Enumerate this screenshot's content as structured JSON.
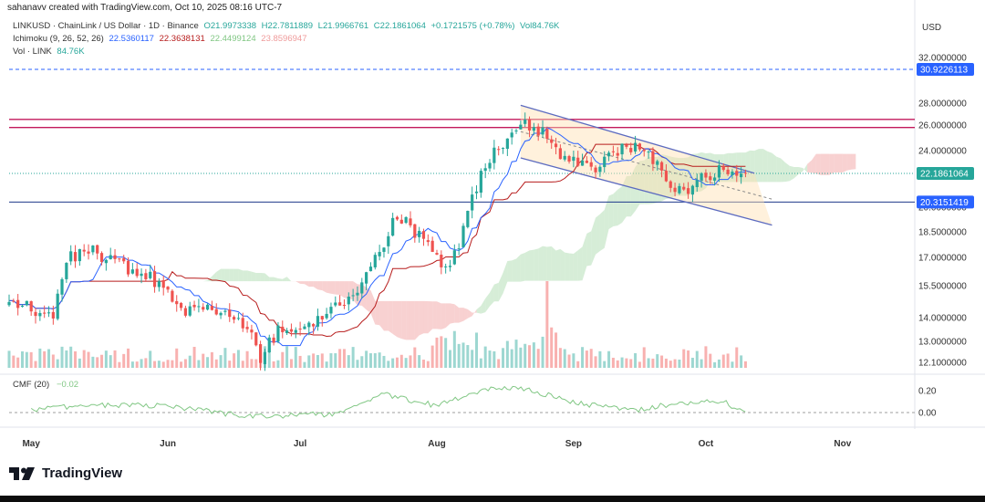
{
  "header": {
    "credit": "sahanavv created with TradingView.com, Oct 10, 2025 08:16 UTC-7"
  },
  "legend": {
    "symbol": "LINKUSD · ChainLink / US Dollar · 1D · Binance",
    "open": "O21.9973338",
    "high": "H22.7811889",
    "low": "L21.9966761",
    "close": "C22.1861064",
    "change": "+0.1721575 (+0.78%)",
    "volume": "Vol84.76K",
    "ichimoku_label": "Ichimoku (9, 26, 52, 26)",
    "ichimoku_values": [
      "22.5360117",
      "22.3638131",
      "22.4499124",
      "23.8596947"
    ],
    "vol_label": "Vol · LINK",
    "vol_value": "84.76K",
    "cmf_label": "CMF (20)",
    "cmf_value": "−0.02"
  },
  "axis": {
    "currency": "USD",
    "price_ticks": [
      "32.0000000",
      "28.0000000",
      "26.0000000",
      "24.0000000",
      "20.0000000",
      "18.5000000",
      "17.0000000",
      "15.5000000",
      "14.0000000",
      "13.0000000",
      "12.1000000"
    ],
    "price_tags": [
      {
        "text": "30.9226113",
        "value": 30.9226113,
        "color": "#2962ff"
      },
      {
        "text": "22.1861064",
        "value": 22.1861064,
        "color": "#26a69a"
      },
      {
        "text": "20.3151419",
        "value": 20.3151419,
        "color": "#2962ff"
      }
    ],
    "cmf_ticks": [
      "0.20",
      "0.00"
    ],
    "months": [
      "May",
      "Jun",
      "Jul",
      "Aug",
      "Sep",
      "Oct",
      "Nov"
    ]
  },
  "brand": {
    "name": "TradingView"
  },
  "colors": {
    "up": "#26a69a",
    "down": "#ef5350",
    "tenkan": "#2962ff",
    "kijun": "#b71c1c",
    "cloud_bull": "#a5d6a7",
    "cloud_bear": "#ef9a9a",
    "channel": "#5c6bc0",
    "resistance": "#c2185b",
    "support": "#1e3a8a",
    "cmf": "#81c784"
  },
  "chart_data": {
    "type": "candlestick",
    "symbol": "LINKUSD",
    "interval": "1D",
    "y_axis_scale": "log",
    "ylim": [
      12.1,
      33.2
    ],
    "resistance_levels": [
      26.5,
      25.8
    ],
    "support_level": 20.3151419,
    "upper_target": 30.9226113,
    "channel": {
      "upper": [
        {
          "date": "2025-08-20",
          "price": 27.8
        },
        {
          "date": "2025-10-12",
          "price": 22.2
        }
      ],
      "lower": [
        {
          "date": "2025-08-20",
          "price": 23.4
        },
        {
          "date": "2025-10-16",
          "price": 18.9
        }
      ]
    },
    "closes": [
      {
        "date": "2025-04-26",
        "close": 14.6
      },
      {
        "date": "2025-05-01",
        "close": 14.4
      },
      {
        "date": "2025-05-06",
        "close": 14.2
      },
      {
        "date": "2025-05-09",
        "close": 16.8
      },
      {
        "date": "2025-05-13",
        "close": 17.5
      },
      {
        "date": "2025-05-18",
        "close": 17.0
      },
      {
        "date": "2025-05-23",
        "close": 16.3
      },
      {
        "date": "2025-05-28",
        "close": 15.9
      },
      {
        "date": "2025-06-01",
        "close": 15.2
      },
      {
        "date": "2025-06-05",
        "close": 14.3
      },
      {
        "date": "2025-06-10",
        "close": 14.7
      },
      {
        "date": "2025-06-15",
        "close": 13.9
      },
      {
        "date": "2025-06-19",
        "close": 13.8
      },
      {
        "date": "2025-06-22",
        "close": 12.3
      },
      {
        "date": "2025-06-26",
        "close": 13.5
      },
      {
        "date": "2025-07-01",
        "close": 13.4
      },
      {
        "date": "2025-07-06",
        "close": 13.9
      },
      {
        "date": "2025-07-10",
        "close": 14.6
      },
      {
        "date": "2025-07-14",
        "close": 15.4
      },
      {
        "date": "2025-07-19",
        "close": 17.2
      },
      {
        "date": "2025-07-23",
        "close": 19.6
      },
      {
        "date": "2025-07-27",
        "close": 18.5
      },
      {
        "date": "2025-07-31",
        "close": 17.6
      },
      {
        "date": "2025-08-03",
        "close": 16.2
      },
      {
        "date": "2025-08-06",
        "close": 17.7
      },
      {
        "date": "2025-08-09",
        "close": 20.6
      },
      {
        "date": "2025-08-13",
        "close": 23.4
      },
      {
        "date": "2025-08-17",
        "close": 25.0
      },
      {
        "date": "2025-08-21",
        "close": 26.4
      },
      {
        "date": "2025-08-25",
        "close": 25.3
      },
      {
        "date": "2025-08-29",
        "close": 23.6
      },
      {
        "date": "2025-09-02",
        "close": 22.8
      },
      {
        "date": "2025-09-06",
        "close": 22.7
      },
      {
        "date": "2025-09-10",
        "close": 23.8
      },
      {
        "date": "2025-09-14",
        "close": 24.2
      },
      {
        "date": "2025-09-18",
        "close": 23.6
      },
      {
        "date": "2025-09-22",
        "close": 21.9
      },
      {
        "date": "2025-09-26",
        "close": 20.9
      },
      {
        "date": "2025-09-30",
        "close": 21.8
      },
      {
        "date": "2025-10-04",
        "close": 22.6
      },
      {
        "date": "2025-10-08",
        "close": 22.4
      },
      {
        "date": "2025-10-10",
        "close": 22.19
      }
    ],
    "cmf": {
      "name": "CMF (20)",
      "values": [
        {
          "date": "2025-05-01",
          "value": 0.02
        },
        {
          "date": "2025-05-15",
          "value": 0.07
        },
        {
          "date": "2025-06-01",
          "value": 0.06
        },
        {
          "date": "2025-06-20",
          "value": -0.04
        },
        {
          "date": "2025-07-10",
          "value": -0.01
        },
        {
          "date": "2025-07-20",
          "value": 0.17
        },
        {
          "date": "2025-08-01",
          "value": 0.06
        },
        {
          "date": "2025-08-12",
          "value": 0.22
        },
        {
          "date": "2025-08-20",
          "value": 0.23
        },
        {
          "date": "2025-09-01",
          "value": 0.09
        },
        {
          "date": "2025-09-15",
          "value": 0.02
        },
        {
          "date": "2025-09-25",
          "value": 0.09
        },
        {
          "date": "2025-10-05",
          "value": 0.11
        },
        {
          "date": "2025-10-10",
          "value": -0.02
        }
      ]
    }
  }
}
